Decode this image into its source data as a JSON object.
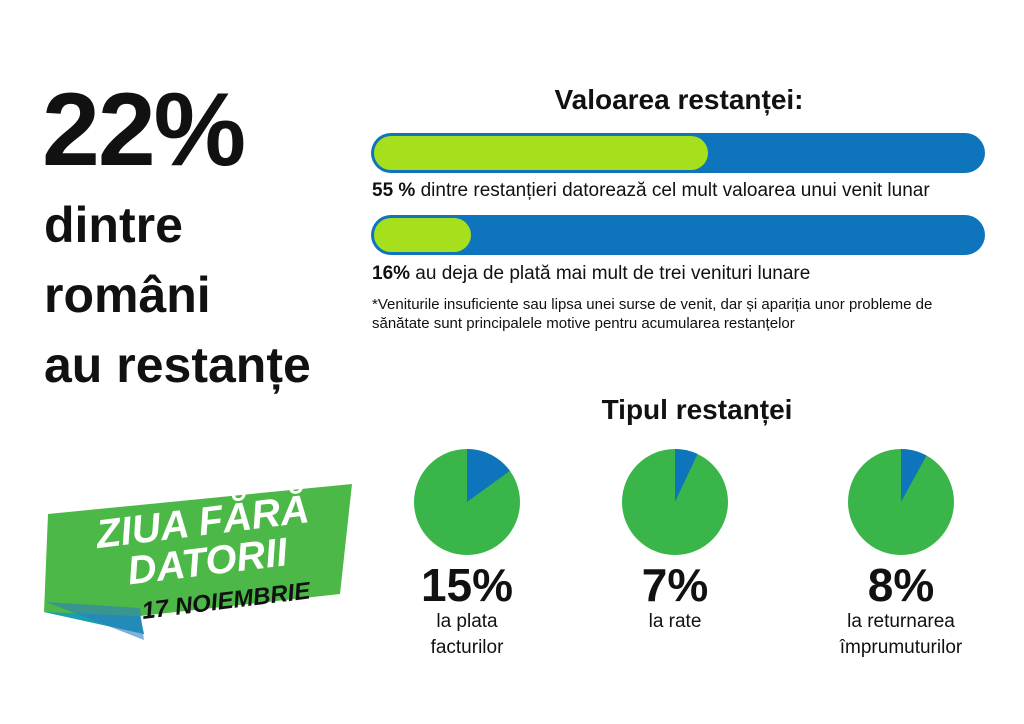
{
  "headline": {
    "percent": "22%",
    "lines": [
      "dintre",
      "români",
      "au restanțe"
    ]
  },
  "banner": {
    "line1": "ZIUA FĂRĂ",
    "line2": "DATORII",
    "date": "17 NOIEMBRIE"
  },
  "colors": {
    "bar_track": "#0e75bd",
    "bar_fill": "#a6e01c",
    "pie_main": "#3ab54a",
    "pie_slice": "#0e75bd",
    "banner_green": "#4cb848"
  },
  "chart_data": [
    {
      "type": "bar",
      "title": "Valoarea restanței:",
      "bars": [
        {
          "value": 55,
          "bold": "55 %",
          "text": " dintre restanțieri datorează cel mult valoarea unui venit lunar"
        },
        {
          "value": 16,
          "bold": "16%",
          "text": " au deja de plată mai mult de trei venituri lunare"
        }
      ],
      "ylim": [
        0,
        100
      ],
      "note": "*Veniturile insuficiente sau lipsa unei surse de venit, dar și apariția unor probleme de sănătate sunt principalele motive pentru acumularea restanțelor"
    },
    {
      "type": "pie",
      "title": "Tipul  restanței",
      "slices": [
        {
          "value": 15,
          "label": "15%",
          "caption": [
            "la plata",
            "facturilor"
          ]
        },
        {
          "value": 7,
          "label": "7%",
          "caption": [
            "la rate"
          ]
        },
        {
          "value": 8,
          "label": "8%",
          "caption": [
            "la returnarea",
            "împrumuturilor"
          ]
        }
      ]
    }
  ]
}
